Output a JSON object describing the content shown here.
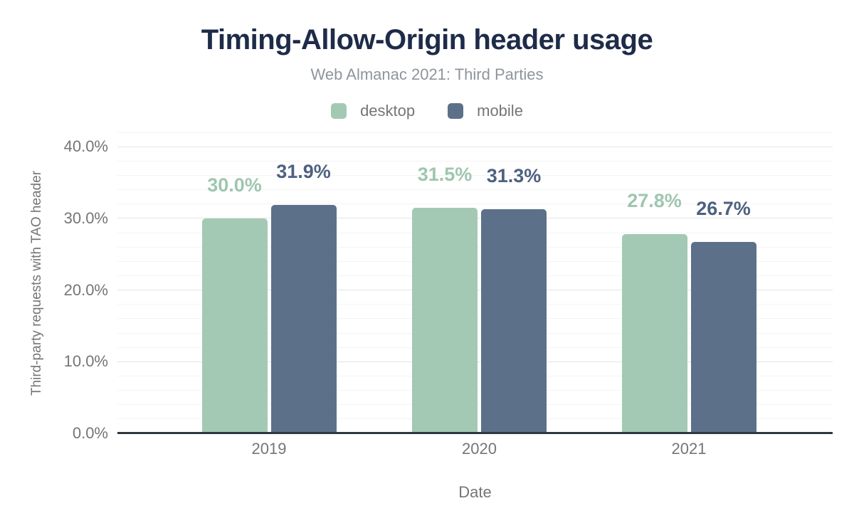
{
  "chart_data": {
    "type": "bar",
    "title": "Timing-Allow-Origin header usage",
    "subtitle": "Web Almanac 2021: Third Parties",
    "xlabel": "Date",
    "ylabel": "Third-party requests with TAO header",
    "categories": [
      "2019",
      "2020",
      "2021"
    ],
    "series": [
      {
        "name": "desktop",
        "color": "#a3c9b4",
        "label_color": "#9fc6b0",
        "values": [
          30.0,
          31.5,
          27.8
        ],
        "labels": [
          "30.0%",
          "31.5%",
          "27.8%"
        ]
      },
      {
        "name": "mobile",
        "color": "#5d7089",
        "label_color": "#4e6181",
        "values": [
          31.9,
          31.3,
          26.7
        ],
        "labels": [
          "31.9%",
          "31.3%",
          "26.7%"
        ]
      }
    ],
    "ylim": [
      0,
      42
    ],
    "yticks": [
      0,
      10,
      20,
      30,
      40
    ],
    "ytick_labels": [
      "0.0%",
      "10.0%",
      "20.0%",
      "30.0%",
      "40.0%"
    ],
    "grid": {
      "minor_step": 2,
      "major_step": 10,
      "enabled": true
    },
    "legend_position": "top"
  },
  "colors": {
    "title_text": "#1e2b49",
    "subtitle_text": "#8f959b",
    "axis_text": "#757575",
    "axis_line": "#30373f",
    "grid_minor": "#f4f4f4",
    "grid_major": "#e4e4e4",
    "background": "#ffffff"
  }
}
